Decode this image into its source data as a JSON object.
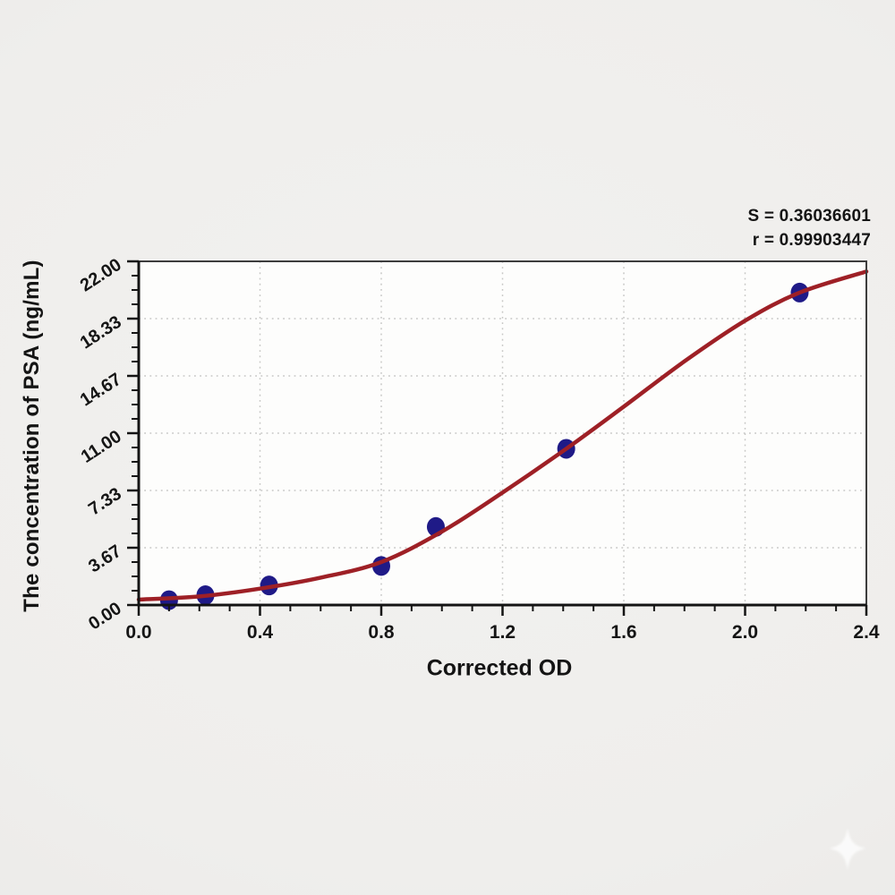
{
  "stats": {
    "s": "S = 0.36036601",
    "r": "r = 0.99903447"
  },
  "axes": {
    "x_title": "Corrected OD",
    "y_title": "The concentration of PSA (ng/mL)"
  },
  "watermark": {
    "icon": "sparkle"
  },
  "chart_data": {
    "type": "scatter",
    "title": "",
    "xlabel": "Corrected OD",
    "ylabel": "The concentration of PSA (ng/mL)",
    "xlim": [
      0.0,
      2.4
    ],
    "ylim": [
      0.0,
      22.0
    ],
    "x_ticks": [
      "0.0",
      "0.4",
      "0.8",
      "1.2",
      "1.6",
      "2.0",
      "2.4"
    ],
    "y_ticks": [
      "0.00",
      "3.67",
      "7.33",
      "11.00",
      "14.67",
      "18.33",
      "22.00"
    ],
    "minor_ticks_between_majors": 3,
    "grid": "dotted at major gridlines",
    "legend": "none",
    "annotations": [
      "S = 0.36036601",
      "r = 0.99903447"
    ],
    "series": [
      {
        "name": "standard-points",
        "type": "scatter",
        "color": "#1f1a87",
        "points": [
          [
            0.1,
            0.31
          ],
          [
            0.22,
            0.63
          ],
          [
            0.43,
            1.25
          ],
          [
            0.8,
            2.5
          ],
          [
            0.98,
            5.0
          ],
          [
            1.41,
            10.0
          ],
          [
            2.18,
            20.0
          ]
        ]
      },
      {
        "name": "fitted-curve",
        "type": "line",
        "color": "#9e2026",
        "points": [
          [
            0.0,
            0.35
          ],
          [
            0.2,
            0.55
          ],
          [
            0.4,
            1.05
          ],
          [
            0.6,
            1.75
          ],
          [
            0.8,
            2.75
          ],
          [
            1.0,
            4.7
          ],
          [
            1.2,
            7.2
          ],
          [
            1.41,
            10.0
          ],
          [
            1.6,
            12.7
          ],
          [
            1.8,
            15.6
          ],
          [
            2.0,
            18.2
          ],
          [
            2.18,
            20.0
          ],
          [
            2.4,
            21.35
          ]
        ]
      }
    ],
    "colors": {
      "curve": "#9e2026",
      "points": "#1f1a87",
      "axis_main": "#141414",
      "axis_frame": "#3d3d3d",
      "grid": "#c7c7c5",
      "plot_background": "#fdfdfc",
      "page_background": "#efeeec",
      "text": "#151515"
    }
  }
}
